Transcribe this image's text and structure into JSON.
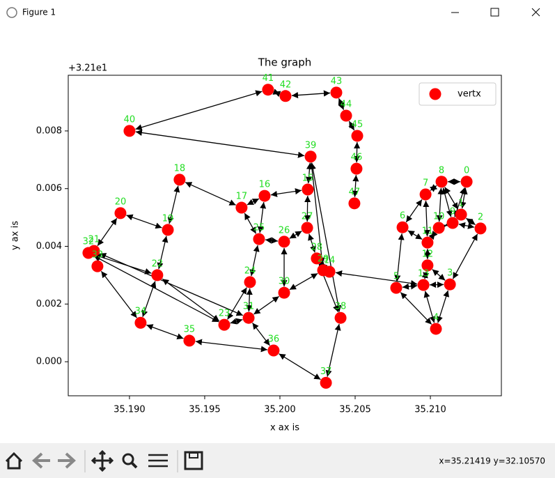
{
  "window": {
    "title": "Figure 1",
    "status": "x=35.21419 y=32.10570"
  },
  "chart_data": {
    "type": "graph",
    "title": "The graph",
    "x_label": "x ax is",
    "y_label": "y ax is",
    "y_offset_label": "+3.21e1",
    "xlim": [
      35.18593,
      35.21472
    ],
    "ylim": [
      -0.00118,
      0.00993
    ],
    "xticks": [
      {
        "value": 35.19,
        "label": "35.190"
      },
      {
        "value": 35.195,
        "label": "35.195"
      },
      {
        "value": 35.2,
        "label": "35.200"
      },
      {
        "value": 35.205,
        "label": "35.205"
      },
      {
        "value": 35.21,
        "label": "35.210"
      }
    ],
    "yticks": [
      {
        "value": 0,
        "label": "0.000"
      },
      {
        "value": 0.002,
        "label": "0.002"
      },
      {
        "value": 0.004,
        "label": "0.004"
      },
      {
        "value": 0.006,
        "label": "0.006"
      },
      {
        "value": 0.008,
        "label": "0.008"
      }
    ],
    "legend": "upper right",
    "label_color": "#22dd22",
    "edge_color": "#000000",
    "series": [
      {
        "name": "vertx",
        "color": "#ff0000",
        "x": [
          35.21241,
          35.21204,
          35.21333,
          35.2113,
          35.21037,
          35.20773,
          35.20815,
          35.20968,
          35.21074,
          35.21148,
          35.21056,
          35.20981,
          35.20981,
          35.20954,
          35.20329,
          35.20185,
          35.19898,
          35.19745,
          35.19333,
          35.19255,
          35.1894,
          35.18764,
          35.19185,
          35.1963,
          35.19801,
          35.19861,
          35.20028,
          35.20181,
          35.20245,
          35.20287,
          35.20028,
          35.19792,
          35.18727,
          35.18787,
          35.19074,
          35.19398,
          35.19958,
          35.20306,
          35.20403,
          35.20204,
          35.19,
          35.19921,
          35.20037,
          35.20375,
          35.2044,
          35.20514,
          35.20509,
          35.20495
        ],
        "values": [
          0.00624,
          0.0051,
          0.00462,
          0.00268,
          0.00114,
          0.00256,
          0.00466,
          0.0058,
          0.00624,
          0.00481,
          0.00464,
          0.00413,
          0.00334,
          0.00266,
          0.00312,
          0.00597,
          0.00575,
          0.00534,
          0.00631,
          0.00457,
          0.00515,
          0.00384,
          0.003,
          0.00128,
          0.00276,
          0.00425,
          0.00416,
          0.00464,
          0.00358,
          0.00317,
          0.00239,
          0.00152,
          0.00377,
          0.00331,
          0.00135,
          0.00073,
          0.00039,
          -0.00073,
          0.00152,
          0.00711,
          0.008,
          0.00943,
          0.00921,
          0.00933,
          0.00853,
          0.00783,
          0.00669,
          0.00549
        ],
        "labels": [
          "0",
          "1",
          "2",
          "3",
          "4",
          "5",
          "6",
          "7",
          "8",
          "9",
          "10",
          "11",
          "12",
          "13",
          "14",
          "15",
          "16",
          "17",
          "18",
          "19",
          "20",
          "21",
          "22",
          "23",
          "24",
          "25",
          "26",
          "27",
          "28",
          "29",
          "30",
          "31",
          "32",
          "33",
          "34",
          "35",
          "36",
          "37",
          "38",
          "39",
          "40",
          "41",
          "42",
          "43",
          "44",
          "45",
          "46",
          "47"
        ]
      }
    ],
    "edges": [
      [
        40,
        41
      ],
      [
        41,
        42
      ],
      [
        42,
        43
      ],
      [
        43,
        44
      ],
      [
        44,
        45
      ],
      [
        45,
        46
      ],
      [
        46,
        47
      ],
      [
        39,
        40
      ],
      [
        39,
        29
      ],
      [
        39,
        38
      ],
      [
        15,
        39
      ],
      [
        15,
        27
      ],
      [
        15,
        16
      ],
      [
        16,
        17
      ],
      [
        17,
        18
      ],
      [
        18,
        19
      ],
      [
        19,
        20
      ],
      [
        20,
        21
      ],
      [
        19,
        22
      ],
      [
        22,
        34
      ],
      [
        34,
        33
      ],
      [
        21,
        31
      ],
      [
        32,
        23
      ],
      [
        22,
        23
      ],
      [
        22,
        32
      ],
      [
        23,
        24
      ],
      [
        24,
        25
      ],
      [
        25,
        17
      ],
      [
        25,
        26
      ],
      [
        26,
        27
      ],
      [
        27,
        28
      ],
      [
        28,
        14
      ],
      [
        26,
        30
      ],
      [
        30,
        29
      ],
      [
        31,
        24
      ],
      [
        31,
        36
      ],
      [
        36,
        35
      ],
      [
        35,
        34
      ],
      [
        31,
        23
      ],
      [
        36,
        37
      ],
      [
        37,
        38
      ],
      [
        38,
        28
      ],
      [
        14,
        13
      ],
      [
        13,
        5
      ],
      [
        5,
        6
      ],
      [
        6,
        7
      ],
      [
        7,
        8
      ],
      [
        8,
        0
      ],
      [
        0,
        1
      ],
      [
        1,
        2
      ],
      [
        2,
        3
      ],
      [
        3,
        4
      ],
      [
        4,
        13
      ],
      [
        4,
        5
      ],
      [
        13,
        12
      ],
      [
        12,
        11
      ],
      [
        11,
        10
      ],
      [
        10,
        9
      ],
      [
        9,
        2
      ],
      [
        8,
        10
      ],
      [
        7,
        11
      ],
      [
        8,
        9
      ],
      [
        0,
        9
      ],
      [
        1,
        8
      ],
      [
        6,
        11
      ],
      [
        13,
        3
      ],
      [
        3,
        12
      ],
      [
        16,
        25
      ],
      [
        29,
        14
      ],
      [
        30,
        31
      ]
    ]
  }
}
